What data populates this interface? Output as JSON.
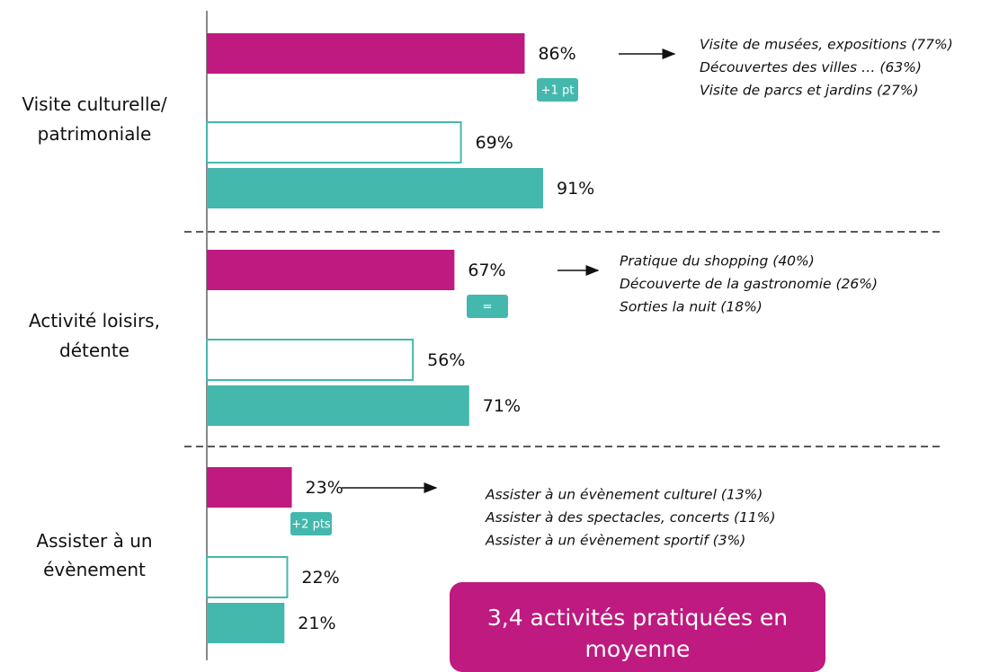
{
  "chart_data": {
    "type": "bar",
    "orientation": "horizontal",
    "categories": [
      "Visite culturelle/ patrimoniale",
      "Activité loisirs, détente",
      "Assister à un évènement"
    ],
    "xlim": [
      0,
      100
    ],
    "series": [
      {
        "color": "#be1a7f",
        "fill": "#be1a7f",
        "values": [
          86,
          67,
          23
        ],
        "value_labels": [
          "86%",
          "67%",
          "23%"
        ]
      },
      {
        "color": "#45b8ad",
        "fill": "#ffffff",
        "values": [
          69,
          56,
          22
        ],
        "value_labels": [
          "69%",
          "56%",
          "22%"
        ]
      },
      {
        "color": "#45b8ad",
        "fill": "#45b8ad",
        "values": [
          91,
          71,
          21
        ],
        "value_labels": [
          "91%",
          "71%",
          "21%"
        ]
      }
    ],
    "annotations": [
      {
        "badge": "+1 pt",
        "details": [
          "Visite de musées, expositions (77%)",
          "Découvertes des villes … (63%)",
          "Visite de parcs et jardins (27%)"
        ]
      },
      {
        "badge": "=",
        "details": [
          "Pratique du shopping (40%)",
          "Découverte de la gastronomie (26%)",
          "Sorties la nuit (18%)"
        ]
      },
      {
        "badge": "+2 pts",
        "details": [
          "Assister à un évènement culturel (13%)",
          "Assister à des spectacles, concerts (11%)",
          "Assister à un évènement sportif (3%)"
        ]
      }
    ],
    "summary": "3,4 activités pratiquées en moyenne"
  }
}
